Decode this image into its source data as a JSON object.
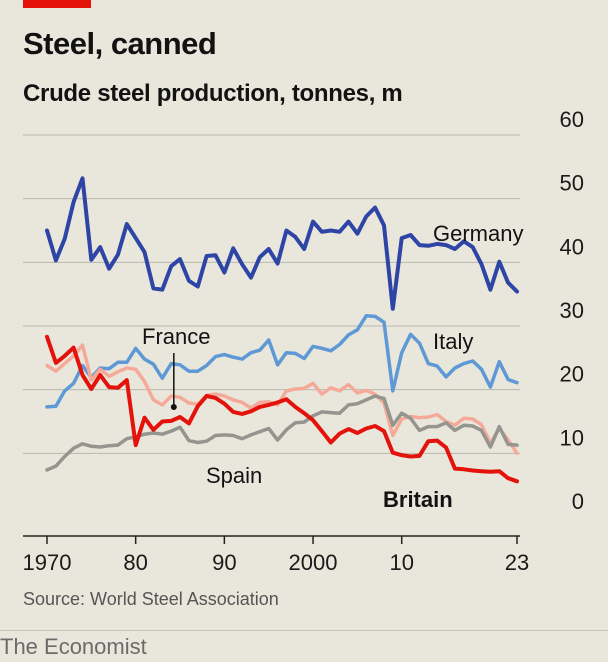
{
  "header": {
    "title": "Steel, canned",
    "subtitle": "Crude steel production, tonnes, m"
  },
  "footer": {
    "source": "Source: World Steel Association",
    "brand": "The Economist"
  },
  "colors": {
    "background": "#e9e7dc",
    "accent_red": "#e3120b",
    "grid": "#b9b8af"
  },
  "chart_data": {
    "type": "line",
    "title": "Crude steel production, tonnes, m",
    "xlabel": "",
    "ylabel": "",
    "xlim": [
      1970,
      2023
    ],
    "ylim": [
      0,
      60
    ],
    "y_ticks": [
      0,
      10,
      20,
      30,
      40,
      50,
      60
    ],
    "y_tick_labels": [
      "0",
      "10",
      "20",
      "30",
      "40",
      "50",
      "60"
    ],
    "x_ticks": [
      1970,
      1980,
      1990,
      2000,
      2010,
      2023
    ],
    "x_tick_labels": [
      "1970",
      "80",
      "90",
      "2000",
      "10",
      "23"
    ],
    "grid": true,
    "legend": "inline labels",
    "x": [
      1970,
      1971,
      1972,
      1973,
      1974,
      1975,
      1976,
      1977,
      1978,
      1979,
      1980,
      1981,
      1982,
      1983,
      1984,
      1985,
      1986,
      1987,
      1988,
      1989,
      1990,
      1991,
      1992,
      1993,
      1994,
      1995,
      1996,
      1997,
      1998,
      1999,
      2000,
      2001,
      2002,
      2003,
      2004,
      2005,
      2006,
      2007,
      2008,
      2009,
      2010,
      2011,
      2012,
      2013,
      2014,
      2015,
      2016,
      2017,
      2018,
      2019,
      2020,
      2021,
      2022,
      2023
    ],
    "series": [
      {
        "name": "Germany",
        "color": "#2e45a6",
        "width": 4,
        "values": [
          45.0,
          40.3,
          43.7,
          49.5,
          53.2,
          40.4,
          42.4,
          39.0,
          41.2,
          46.0,
          43.8,
          41.6,
          35.9,
          35.7,
          39.4,
          40.5,
          37.1,
          36.2,
          41.0,
          41.1,
          38.4,
          42.2,
          39.7,
          37.6,
          40.8,
          42.1,
          39.8,
          45.0,
          44.0,
          42.1,
          46.4,
          44.8,
          45.0,
          44.8,
          46.4,
          44.5,
          47.2,
          48.6,
          45.8,
          32.7,
          43.8,
          44.3,
          42.7,
          42.6,
          42.9,
          42.7,
          42.1,
          43.3,
          42.4,
          39.7,
          35.7,
          40.1,
          36.8,
          35.4
        ]
      },
      {
        "name": "Italy",
        "color": "#5e99d6",
        "width": 3.5,
        "values": [
          17.3,
          17.4,
          19.8,
          21.0,
          23.8,
          21.9,
          23.4,
          23.3,
          24.3,
          24.3,
          26.5,
          24.8,
          24.0,
          21.8,
          24.1,
          23.9,
          22.9,
          22.9,
          23.8,
          25.2,
          25.5,
          25.1,
          24.8,
          25.8,
          26.2,
          27.8,
          23.9,
          25.8,
          25.7,
          24.9,
          26.8,
          26.5,
          26.1,
          27.1,
          28.6,
          29.4,
          31.6,
          31.5,
          30.6,
          19.8,
          25.8,
          28.7,
          27.3,
          24.1,
          23.7,
          22.0,
          23.4,
          24.1,
          24.5,
          23.2,
          20.4,
          24.4,
          21.6,
          21.1
        ]
      },
      {
        "name": "France",
        "color": "#f5a998",
        "width": 3.5,
        "values": [
          23.8,
          22.9,
          24.1,
          25.3,
          27.0,
          21.5,
          23.2,
          22.1,
          22.8,
          23.4,
          23.2,
          21.3,
          18.4,
          17.6,
          19.0,
          18.8,
          17.9,
          17.7,
          19.1,
          19.3,
          19.0,
          18.4,
          18.0,
          17.1,
          18.0,
          18.1,
          17.6,
          19.8,
          20.1,
          20.2,
          21.0,
          19.3,
          20.3,
          19.8,
          20.8,
          19.5,
          19.9,
          19.3,
          17.9,
          12.8,
          15.4,
          15.8,
          15.6,
          15.7,
          16.1,
          15.0,
          14.4,
          15.5,
          15.4,
          14.5,
          11.6,
          13.9,
          12.1,
          10.0
        ]
      },
      {
        "name": "Spain",
        "color": "#959590",
        "width": 3.5,
        "values": [
          7.4,
          8.0,
          9.5,
          10.8,
          11.5,
          11.1,
          11.0,
          11.2,
          11.3,
          12.3,
          12.6,
          13.0,
          13.2,
          13.0,
          13.5,
          14.1,
          12.0,
          11.7,
          11.9,
          12.8,
          12.9,
          12.8,
          12.3,
          12.9,
          13.4,
          13.9,
          12.1,
          13.7,
          14.8,
          14.9,
          15.9,
          16.5,
          16.4,
          16.3,
          17.6,
          17.8,
          18.4,
          19.0,
          18.6,
          14.4,
          16.3,
          15.5,
          13.6,
          14.2,
          14.2,
          14.8,
          13.6,
          14.4,
          14.3,
          13.6,
          11.0,
          14.2,
          11.4,
          11.3
        ]
      },
      {
        "name": "Britain",
        "color": "#e3120b",
        "width": 4,
        "values": [
          28.3,
          24.2,
          25.3,
          26.6,
          22.3,
          20.1,
          22.3,
          20.4,
          20.3,
          21.5,
          11.3,
          15.6,
          13.7,
          15.0,
          15.1,
          15.7,
          14.7,
          17.4,
          19.0,
          18.7,
          17.8,
          16.5,
          16.2,
          16.6,
          17.3,
          17.6,
          18.0,
          18.5,
          17.3,
          16.3,
          15.2,
          13.5,
          11.7,
          13.1,
          13.8,
          13.2,
          13.9,
          14.3,
          13.5,
          10.1,
          9.7,
          9.5,
          9.6,
          11.9,
          12.0,
          10.9,
          7.6,
          7.5,
          7.3,
          7.2,
          7.1,
          7.2,
          6.1,
          5.6
        ]
      }
    ],
    "annotations": [
      {
        "text": "Germany",
        "series": "Germany",
        "bold": false
      },
      {
        "text": "Italy",
        "series": "Italy",
        "bold": false
      },
      {
        "text": "France",
        "series": "France",
        "bold": false
      },
      {
        "text": "Spain",
        "series": "Spain",
        "bold": false
      },
      {
        "text": "Britain",
        "series": "Britain",
        "bold": true
      }
    ]
  }
}
